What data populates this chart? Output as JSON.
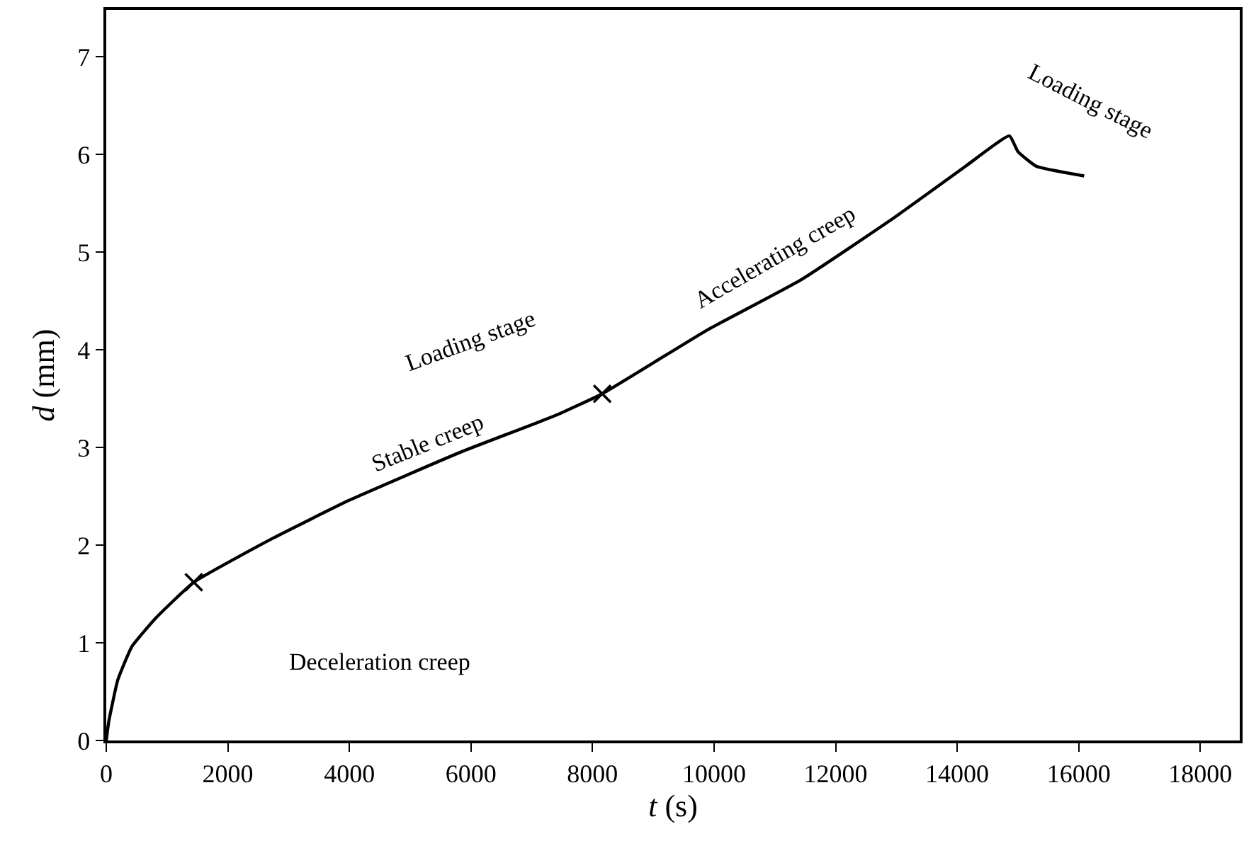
{
  "chart_data": {
    "type": "line",
    "xlabel": "t (s)",
    "ylabel": "d (mm)",
    "xlim": [
      0,
      18650
    ],
    "ylim": [
      0,
      7.48
    ],
    "xticks": [
      0,
      2000,
      4000,
      6000,
      8000,
      10000,
      12000,
      14000,
      16000,
      18000
    ],
    "yticks": [
      0,
      1,
      2,
      3,
      4,
      5,
      6,
      7
    ],
    "marker": "none",
    "line_style": "solid",
    "series": [
      {
        "color": "#000000",
        "x": [
          0,
          40,
          190,
          420,
          810,
          1440,
          2740,
          4000,
          5860,
          7400,
          8160,
          9880,
          11440,
          12980,
          14140,
          14860,
          15000,
          15300,
          16090
        ],
        "values": [
          0,
          0.19,
          0.62,
          0.96,
          1.25,
          1.62,
          2.07,
          2.46,
          2.96,
          3.33,
          3.55,
          4.2,
          4.72,
          5.36,
          5.88,
          6.19,
          6.03,
          5.88,
          5.78
        ]
      },
      {
        "type": "scatter",
        "marker": "cross",
        "color": "#000000",
        "x": [
          1440,
          8160
        ],
        "values": [
          1.62,
          3.55
        ]
      }
    ],
    "annotations": [
      "Deceleration creep",
      "Stable creep",
      "Loading stage",
      "Accelerating creep",
      "Loading stage"
    ]
  }
}
